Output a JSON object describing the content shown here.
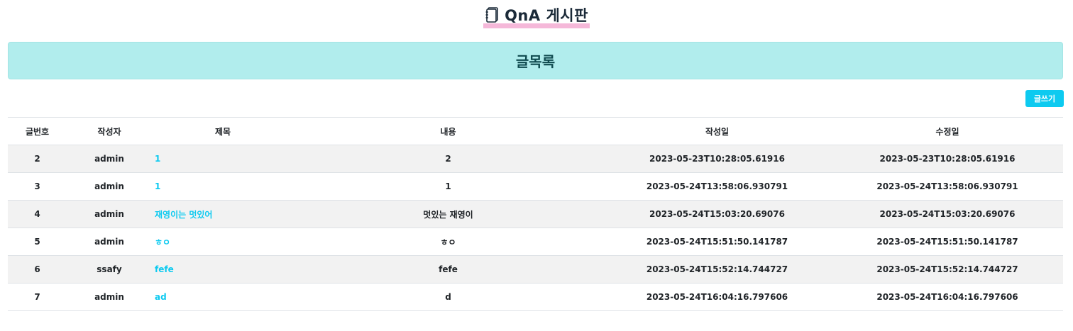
{
  "header": {
    "title": "QnA 게시판",
    "icon": "notebook-icon",
    "underline_color": "#f5b8d9"
  },
  "banner": {
    "title": "글목록",
    "background_color": "#b1eded"
  },
  "toolbar": {
    "write_label": "글쓰기",
    "accent_color": "#0dcaf0"
  },
  "table": {
    "columns": [
      "글번호",
      "작성자",
      "제목",
      "내용",
      "작성일",
      "수정일"
    ],
    "rows": [
      {
        "no": "2",
        "writer": "admin",
        "title": "1",
        "content": "2",
        "created": "2023-05-23T10:28:05.61916",
        "updated": "2023-05-23T10:28:05.61916"
      },
      {
        "no": "3",
        "writer": "admin",
        "title": "1",
        "content": "1",
        "created": "2023-05-24T13:58:06.930791",
        "updated": "2023-05-24T13:58:06.930791"
      },
      {
        "no": "4",
        "writer": "admin",
        "title": "재영이는 멋있어",
        "content": "멋있는 재영이",
        "created": "2023-05-24T15:03:20.69076",
        "updated": "2023-05-24T15:03:20.69076"
      },
      {
        "no": "5",
        "writer": "admin",
        "title": "ㅎㅇ",
        "content": "ㅎㅇ",
        "created": "2023-05-24T15:51:50.141787",
        "updated": "2023-05-24T15:51:50.141787"
      },
      {
        "no": "6",
        "writer": "ssafy",
        "title": "fefe",
        "content": "fefe",
        "created": "2023-05-24T15:52:14.744727",
        "updated": "2023-05-24T15:52:14.744727"
      },
      {
        "no": "7",
        "writer": "admin",
        "title": "ad",
        "content": "d",
        "created": "2023-05-24T16:04:16.797606",
        "updated": "2023-05-24T16:04:16.797606"
      }
    ]
  }
}
